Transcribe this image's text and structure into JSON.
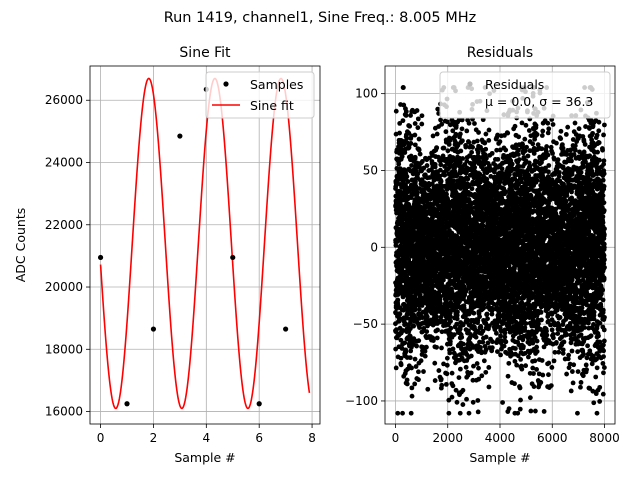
{
  "figure": {
    "suptitle": "Run 1419, channel1, Sine Freq.: 8.005 MHz"
  },
  "chart_data": [
    {
      "type": "scatter",
      "title": "Sine Fit",
      "xlabel": "Sample #",
      "ylabel": "ADC Counts",
      "xlim": [
        -0.4,
        8.3
      ],
      "ylim": [
        15600,
        27100
      ],
      "xticks": [
        0,
        2,
        4,
        6,
        8
      ],
      "yticks": [
        16000,
        18000,
        20000,
        22000,
        24000,
        26000
      ],
      "grid": true,
      "legend_placement": "top-right",
      "series": [
        {
          "name": "Samples",
          "kind": "points",
          "color": "#000000",
          "x": [
            0,
            1,
            2,
            3,
            4,
            5,
            6,
            7
          ],
          "y": [
            20950,
            16250,
            18650,
            24850,
            26350,
            20950,
            16250,
            18650
          ]
        },
        {
          "name": "Sine fit",
          "kind": "line",
          "color": "#ff0000",
          "model": {
            "offset": 21400,
            "amplitude": 5300,
            "cycles_per_sample": 0.4,
            "phase": 3.27,
            "x_range": [
              0,
              7.9
            ]
          }
        }
      ]
    },
    {
      "type": "scatter",
      "title": "Residuals",
      "xlabel": "Sample #",
      "ylabel": "",
      "xlim": [
        -400,
        8400
      ],
      "ylim": [
        -115,
        118
      ],
      "xticks": [
        0,
        2000,
        4000,
        6000,
        8000
      ],
      "yticks": [
        -100,
        -50,
        0,
        50,
        100
      ],
      "grid": true,
      "legend_placement": "top-right",
      "series": [
        {
          "name": "Residuals",
          "kind": "points",
          "color": "#000000",
          "n_points": 8000,
          "x_range": [
            0,
            7999
          ],
          "mean": 0.0,
          "sigma": 36.3
        }
      ],
      "legend_stats": "μ = 0.0, σ = 36.3"
    }
  ]
}
